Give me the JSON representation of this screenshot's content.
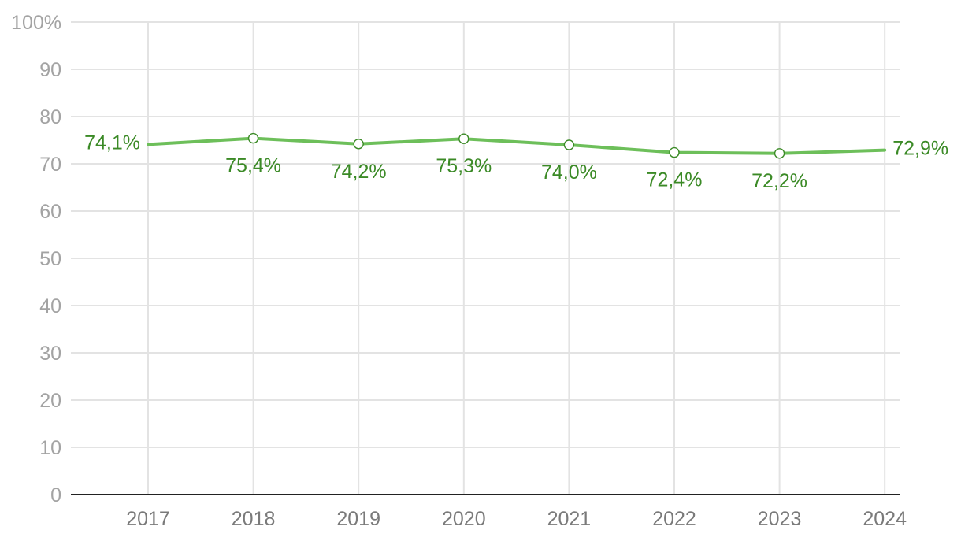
{
  "chart_data": {
    "type": "line",
    "title": "",
    "xlabel": "",
    "ylabel": "",
    "ylim": [
      0,
      100
    ],
    "y_ticks": [
      {
        "value": 0,
        "label": "0"
      },
      {
        "value": 10,
        "label": "10"
      },
      {
        "value": 20,
        "label": "20"
      },
      {
        "value": 30,
        "label": "30"
      },
      {
        "value": 40,
        "label": "40"
      },
      {
        "value": 50,
        "label": "50"
      },
      {
        "value": 60,
        "label": "60"
      },
      {
        "value": 70,
        "label": "70"
      },
      {
        "value": 80,
        "label": "80"
      },
      {
        "value": 90,
        "label": "90"
      },
      {
        "value": 100,
        "label": "100%"
      }
    ],
    "categories": [
      "2017",
      "2018",
      "2019",
      "2020",
      "2021",
      "2022",
      "2023",
      "2024"
    ],
    "series": [
      {
        "values": [
          74.1,
          75.4,
          74.2,
          75.3,
          74.0,
          72.4,
          72.2,
          72.9
        ],
        "labels": [
          "74,1%",
          "75,4%",
          "74,2%",
          "75,3%",
          "74,0%",
          "72,4%",
          "72,2%",
          "72,9%"
        ],
        "markers": [
          false,
          true,
          true,
          true,
          true,
          true,
          true,
          false
        ],
        "label_placement": [
          "left",
          "below",
          "below",
          "below",
          "below",
          "below",
          "below",
          "right"
        ]
      }
    ],
    "grid": true,
    "legend": "none",
    "colors": {
      "line": "#6dbf5a",
      "label": "#3b8a26",
      "marker_stroke": "#3b8a26",
      "grid": "#e3e3e3",
      "axis": "#222222"
    }
  }
}
